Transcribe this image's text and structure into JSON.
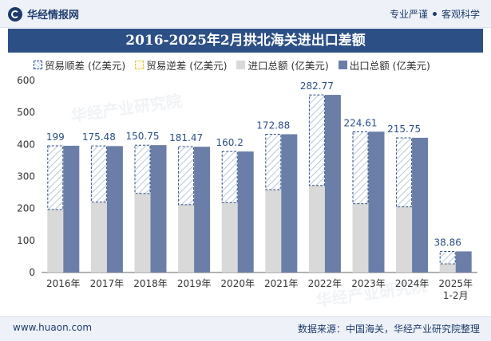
{
  "header": {
    "brand_name": "华经情报网",
    "tag_1": "专业严谨",
    "tag_2": "客观科学"
  },
  "title": "2016-2025年2月拱北海关进出口差额",
  "legend": {
    "surplus": "贸易顺差 (亿美元)",
    "deficit": "贸易逆差 (亿美元)",
    "imports": "进口总额 (亿美元)",
    "exports": "出口总额 (亿美元)"
  },
  "watermark": "华经产业研究院",
  "footer": {
    "url": "www.huaon.com",
    "source": "数据来源：中国海关，华经产业研究院整理"
  },
  "colors": {
    "exports": "#6b7ea8",
    "imports": "#d9d9d9",
    "surplus_stroke": "#2c4f86",
    "label": "#2c4f86"
  },
  "chart_data": {
    "type": "bar",
    "categories": [
      "2016年",
      "2017年",
      "2018年",
      "2019年",
      "2020年",
      "2021年",
      "2022年",
      "2023年",
      "2024年",
      "2025年\n1-2月"
    ],
    "ylim": [
      0,
      600
    ],
    "yticks": [
      0,
      100,
      200,
      300,
      400,
      500,
      600
    ],
    "series": [
      {
        "name": "出口总额 (亿美元)",
        "values": [
          396,
          395,
          398,
          393,
          378,
          432,
          555,
          440,
          421,
          66
        ]
      },
      {
        "name": "进口总额 (亿美元)",
        "values": [
          197,
          220,
          247,
          212,
          218,
          259,
          272,
          215,
          205,
          27
        ]
      },
      {
        "name": "贸易顺差 (亿美元)",
        "values": [
          199,
          175.48,
          150.75,
          181.47,
          160.2,
          172.88,
          282.77,
          224.61,
          215.75,
          38.86
        ]
      }
    ],
    "data_labels": [
      "199",
      "175.48",
      "150.75",
      "181.47",
      "160.2",
      "172.88",
      "282.77",
      "224.61",
      "215.75",
      "38.86"
    ],
    "grid": false
  }
}
